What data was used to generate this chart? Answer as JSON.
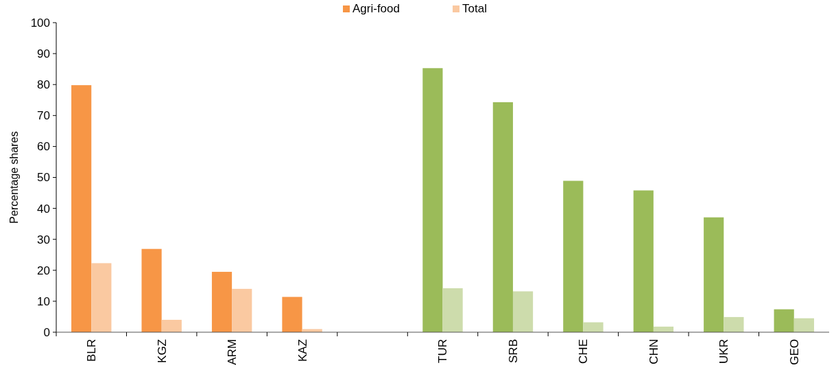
{
  "chart_data": {
    "type": "bar",
    "ylabel": "Percentage shares",
    "categories": [
      "BLR",
      "KGZ",
      "ARM",
      "KAZ",
      null,
      "TUR",
      "SRB",
      "CHE",
      "CHN",
      "UKR",
      "GEO"
    ],
    "series": [
      {
        "name": "Agri-food",
        "color": "#f79646",
        "colors": [
          "#f79646",
          "#f79646",
          "#f79646",
          "#f79646",
          null,
          "#9bbb59",
          "#9bbb59",
          "#9bbb59",
          "#9bbb59",
          "#9bbb59",
          "#9bbb59"
        ],
        "values": [
          79.8,
          26.9,
          19.5,
          11.4,
          null,
          85.3,
          74.3,
          48.9,
          45.8,
          37.1,
          7.4
        ]
      },
      {
        "name": "Total",
        "color": "#fac9a1",
        "colors": [
          "#fac9a1",
          "#fac9a1",
          "#fac9a1",
          "#fac9a1",
          null,
          "#cddcac",
          "#cddcac",
          "#cddcac",
          "#cddcac",
          "#cddcac",
          "#cddcac"
        ],
        "values": [
          22.3,
          4.0,
          14.0,
          1.0,
          null,
          14.2,
          13.2,
          3.2,
          1.8,
          4.9,
          4.5
        ]
      }
    ],
    "ylim": [
      0,
      100
    ],
    "yticks": [
      0,
      10,
      20,
      30,
      40,
      50,
      60,
      70,
      80,
      90,
      100
    ],
    "legend": "top"
  }
}
